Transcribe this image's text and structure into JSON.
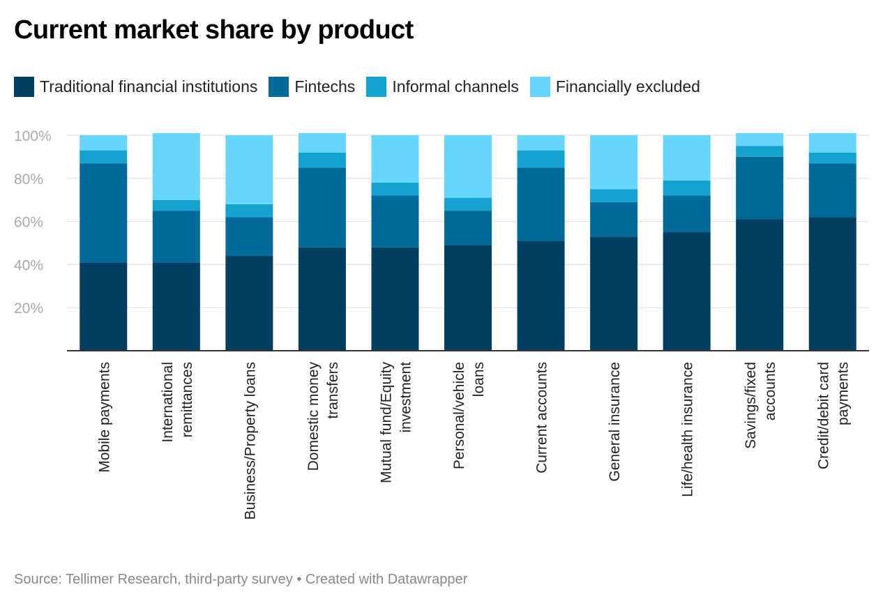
{
  "chart_data": {
    "type": "bar",
    "stacked": true,
    "title": "Current market share by product",
    "xlabel": "",
    "ylabel": "",
    "ylim": [
      0,
      100
    ],
    "yticks": [
      {
        "value": 20,
        "label": "20%"
      },
      {
        "value": 40,
        "label": "40%"
      },
      {
        "value": 60,
        "label": "60%"
      },
      {
        "value": 80,
        "label": "80%"
      },
      {
        "value": 100,
        "label": "100%"
      }
    ],
    "grid": true,
    "legend_position": "top-left",
    "categories": [
      "Mobile payments",
      "International remittances",
      "Business/Property loans",
      "Domestic money transfers",
      "Mutual fund/Equity investment",
      "Personal/vehicle loans",
      "Current accounts",
      "General insurance",
      "Life/health insurance",
      "Savings/fixed accounts",
      "Credit/debit card payments"
    ],
    "category_labels": [
      [
        "Mobile payments"
      ],
      [
        "International",
        "remittances"
      ],
      [
        "Business/Property loans"
      ],
      [
        "Domestic money",
        "transfers"
      ],
      [
        "Mutual fund/Equity",
        "investment"
      ],
      [
        "Personal/vehicle",
        "loans"
      ],
      [
        "Current accounts"
      ],
      [
        "General insurance"
      ],
      [
        "Life/health insurance"
      ],
      [
        "Savings/fixed",
        "accounts"
      ],
      [
        "Credit/debit card",
        "payments"
      ]
    ],
    "series": [
      {
        "name": "Traditional financial institutions",
        "color": "#003e62",
        "values": [
          41,
          41,
          44,
          48,
          48,
          49,
          51,
          53,
          55,
          61,
          62
        ]
      },
      {
        "name": "Fintechs",
        "color": "#006b99",
        "values": [
          46,
          24,
          18,
          37,
          24,
          16,
          34,
          16,
          17,
          29,
          25
        ]
      },
      {
        "name": "Informal channels",
        "color": "#14a3d1",
        "values": [
          6,
          5,
          6,
          7,
          6,
          6,
          8,
          6,
          7,
          5,
          5
        ]
      },
      {
        "name": "Financially excluded",
        "color": "#67d6ff",
        "values": [
          7,
          31,
          32,
          9,
          22,
          29,
          7,
          25,
          21,
          6,
          9
        ]
      }
    ]
  },
  "footer": {
    "source": "Source: Tellimer Research, third-party survey • Created with Datawrapper"
  },
  "colors": {
    "grid": "#dddddd",
    "axis": "#333333",
    "tick_text": "#aaaaaa"
  }
}
